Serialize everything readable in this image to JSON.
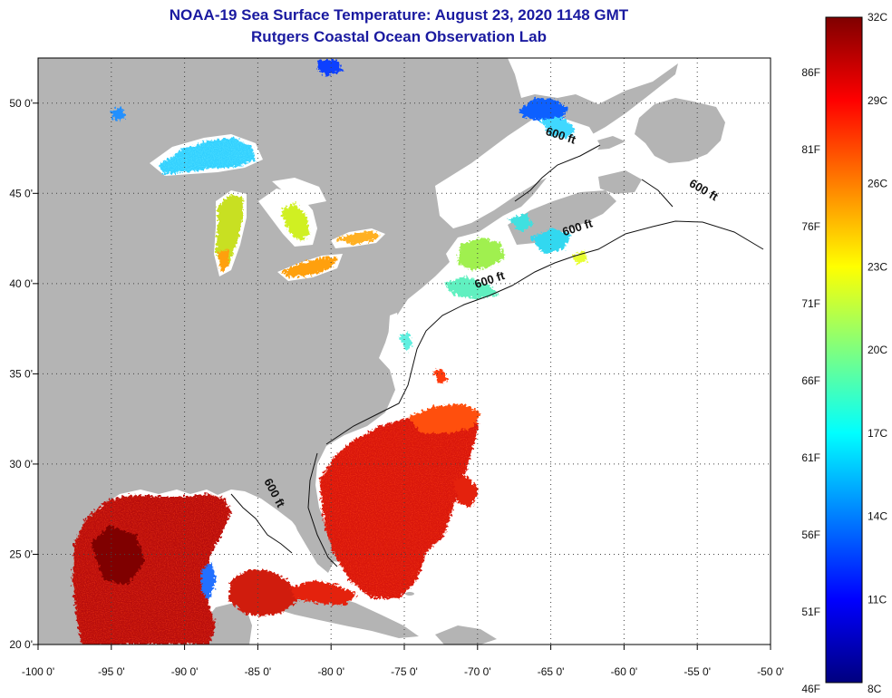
{
  "title": {
    "line1": "NOAA-19 Sea Surface Temperature:  August 23, 2020 1148 GMT",
    "line2": "Rutgers Coastal Ocean Observation Lab"
  },
  "map": {
    "lon_range": [
      -100,
      -50
    ],
    "lat_range": [
      20,
      52.5
    ],
    "lon_ticks": [
      {
        "value": -100,
        "label": "-100 0'"
      },
      {
        "value": -95,
        "label": "-95 0'"
      },
      {
        "value": -90,
        "label": "-90 0'"
      },
      {
        "value": -85,
        "label": "-85 0'"
      },
      {
        "value": -80,
        "label": "-80 0'"
      },
      {
        "value": -75,
        "label": "-75 0'"
      },
      {
        "value": -70,
        "label": "-70 0'"
      },
      {
        "value": -65,
        "label": "-65 0'"
      },
      {
        "value": -60,
        "label": "-60 0'"
      },
      {
        "value": -55,
        "label": "-55 0'"
      },
      {
        "value": -50,
        "label": "-50 0'"
      }
    ],
    "lat_ticks": [
      {
        "value": 20,
        "label": "20 0'"
      },
      {
        "value": 25,
        "label": "25 0'"
      },
      {
        "value": 30,
        "label": "30 0'"
      },
      {
        "value": 35,
        "label": "35 0'"
      },
      {
        "value": 40,
        "label": "40 0'"
      },
      {
        "value": 45,
        "label": "45 0'"
      },
      {
        "value": 50,
        "label": "50 0'"
      }
    ],
    "grid": "dotted",
    "land_color": "#b4b4b4",
    "ocean_color": "#ffffff",
    "contour_labels": [
      {
        "text": "600 ft",
        "lon": -64.4,
        "lat": 48.0,
        "rotate": 18
      },
      {
        "text": "600 ft",
        "lon": -54.7,
        "lat": 45.0,
        "rotate": 30
      },
      {
        "text": "600 ft",
        "lon": -63.1,
        "lat": 42.9,
        "rotate": -18
      },
      {
        "text": "600 ft",
        "lon": -69.1,
        "lat": 40.0,
        "rotate": -18
      },
      {
        "text": "600 ft",
        "lon": -84.1,
        "lat": 28.3,
        "rotate": 62
      }
    ]
  },
  "colorbar": {
    "colors": [
      "#00007f",
      "#0000ff",
      "#007fff",
      "#00ffff",
      "#7fff7f",
      "#ffff00",
      "#ff7f00",
      "#ff0000",
      "#7f0000"
    ],
    "celsius": [
      {
        "value": 8,
        "label": "8C"
      },
      {
        "value": 11,
        "label": "11C"
      },
      {
        "value": 14,
        "label": "14C"
      },
      {
        "value": 17,
        "label": "17C"
      },
      {
        "value": 20,
        "label": "20C"
      },
      {
        "value": 23,
        "label": "23C"
      },
      {
        "value": 26,
        "label": "26C"
      },
      {
        "value": 29,
        "label": "29C"
      },
      {
        "value": 32,
        "label": "32C"
      }
    ],
    "fahrenheit": [
      {
        "value": 46,
        "label": "46F"
      },
      {
        "value": 51,
        "label": "51F"
      },
      {
        "value": 56,
        "label": "56F"
      },
      {
        "value": 61,
        "label": "61F"
      },
      {
        "value": 66,
        "label": "66F"
      },
      {
        "value": 71,
        "label": "71F"
      },
      {
        "value": 76,
        "label": "76F"
      },
      {
        "value": 81,
        "label": "81F"
      },
      {
        "value": 86,
        "label": "86F"
      }
    ]
  }
}
